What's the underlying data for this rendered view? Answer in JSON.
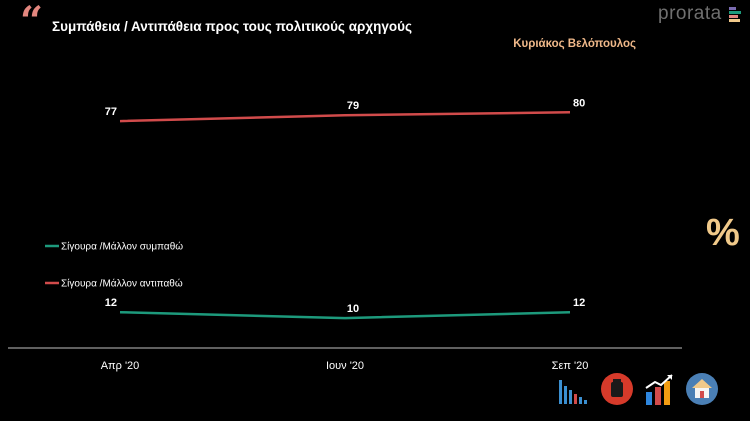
{
  "header": {
    "quote_glyph": "“",
    "title": "Συμπάθεια / Αντιπάθεια προς τους πολιτικούς αρχηγούς",
    "subtitle": "Κυριάκος Βελόπουλος",
    "brand": "prorata",
    "percent_symbol": "%"
  },
  "colors": {
    "background": "#000000",
    "title": "#ffffff",
    "subtitle": "#f0b98a",
    "positive": "#1d9a7c",
    "negative": "#d14b4b",
    "axis": "#bfbfbf",
    "quote": "#e3877f"
  },
  "icons": [
    "bar-chart-icon",
    "cup-icon",
    "trend-chart-icon",
    "home-icon"
  ],
  "chart_data": {
    "type": "line",
    "title": "Συμπάθεια / Αντιπάθεια προς τους πολιτικούς αρχηγούς",
    "subtitle": "Κυριάκος Βελόπουλος",
    "categories": [
      "Απρ '20",
      "Ιουν '20",
      "Σεπ '20"
    ],
    "series": [
      {
        "name": "Σίγουρα /Μάλλον συμπαθώ",
        "values": [
          12,
          10,
          12
        ],
        "color": "#1d9a7c"
      },
      {
        "name": "Σίγουρα /Μάλλον αντιπαθώ",
        "values": [
          77,
          79,
          80
        ],
        "color": "#d14b4b"
      }
    ],
    "ylim": [
      0,
      100
    ],
    "grid": false,
    "legend_position": "left"
  }
}
